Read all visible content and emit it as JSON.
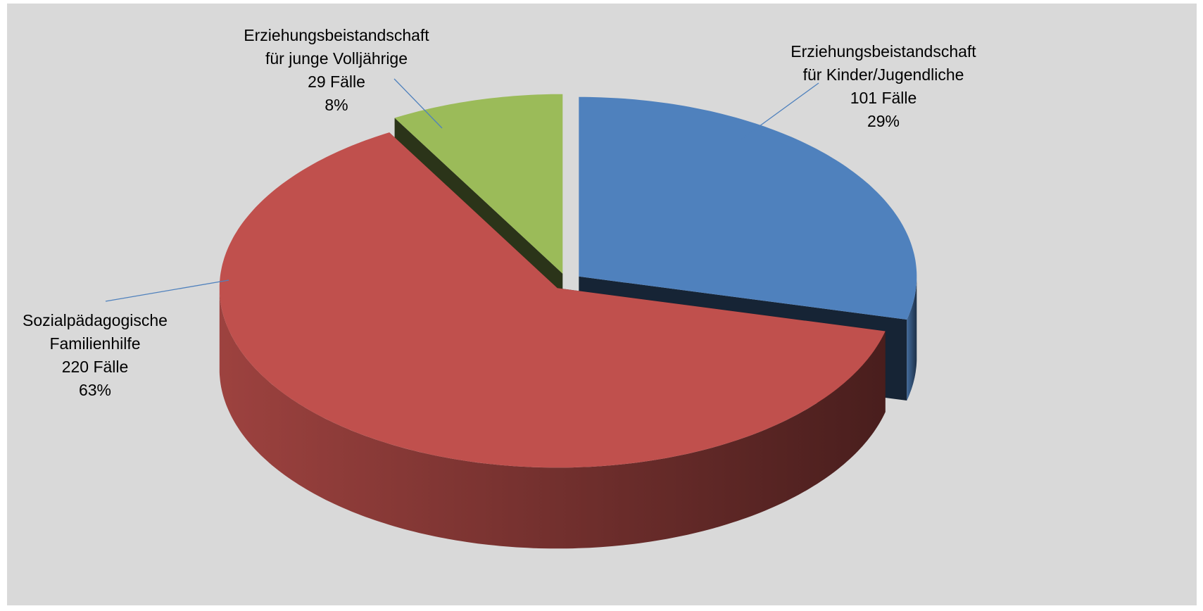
{
  "chart_data": {
    "type": "pie3d",
    "categories": [
      [
        "Erziehungsbeistandschaft",
        "für Kinder/Jugendliche"
      ],
      [
        "Sozialpädagogische",
        "Familienhilfe"
      ],
      [
        "Erziehungsbeistandschaft",
        "für junge Volljährige"
      ]
    ],
    "values": [
      101,
      220,
      29
    ],
    "value_labels": [
      "101 Fälle",
      "220 Fälle",
      "29 Fälle"
    ],
    "percents": [
      29,
      63,
      8
    ],
    "percent_labels": [
      "29%",
      "63%",
      "8%"
    ],
    "colors": [
      "#4f81bd",
      "#c0504d",
      "#9bbb59"
    ]
  }
}
